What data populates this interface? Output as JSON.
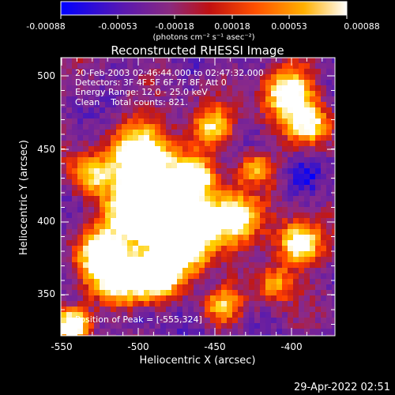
{
  "title": "Reconstructed RHESSI Image",
  "colorbar": {
    "tick_labels": [
      "-0.00088",
      "-0.00053",
      "-0.00018",
      "0.00018",
      "0.00053",
      "0.00088"
    ],
    "units": "(photons cm⁻² s⁻¹ asec⁻²)"
  },
  "annotations": {
    "time_range": "20-Feb-2003 02:46:44.000 to 02:47:32.000",
    "detectors": "Detectors: 3F 4F 5F 6F 7F 8F, Att 0",
    "energy_range": "Energy Range: 12.0 - 25.0 keV",
    "clean_counts": "Clean    Total counts: 821.",
    "peak_position": "Position of Peak = [-555,324]"
  },
  "axes": {
    "xlabel": "Heliocentric X (arcsec)",
    "ylabel": "Heliocentric Y (arcsec)",
    "xticks": [
      "-550",
      "-500",
      "-450",
      "-400"
    ],
    "yticks": [
      "500",
      "450",
      "400",
      "350"
    ]
  },
  "footer_date": "29-Apr-2022 02:51",
  "colors": {
    "background": "#000000",
    "colormap_stops": [
      "#0000ff",
      "#3a14c8",
      "#6a1fa0",
      "#8a2a8a",
      "#c01818",
      "#ff4000",
      "#ff8a00",
      "#ffd000",
      "#ffffff"
    ]
  }
}
